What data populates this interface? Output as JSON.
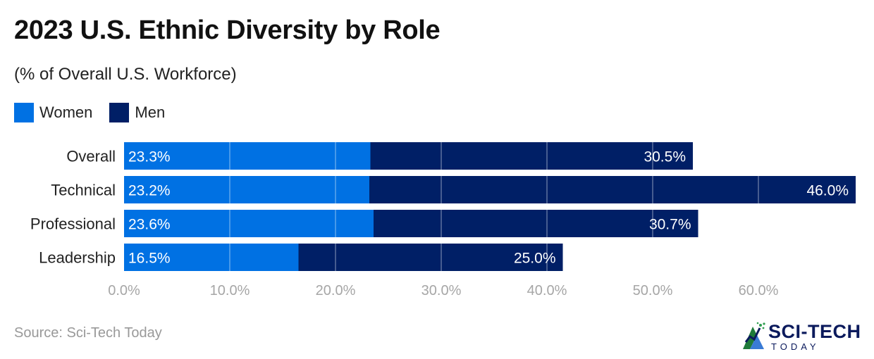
{
  "header": {
    "title": "2023 U.S. Ethnic Diversity by Role",
    "subtitle": "(% of Overall U.S. Workforce)"
  },
  "legend": {
    "women": "Women",
    "men": "Men"
  },
  "colors": {
    "women": "#0071e3",
    "men": "#001f66",
    "grid": "#ffffff",
    "tick": "#a6a6a6"
  },
  "chart_data": {
    "type": "bar",
    "orientation": "horizontal",
    "stacked": true,
    "title": "2023 U.S. Ethnic Diversity by Role",
    "subtitle": "(% of Overall U.S. Workforce)",
    "categories": [
      "Overall",
      "Technical",
      "Professional",
      "Leadership"
    ],
    "series": [
      {
        "name": "Women",
        "values": [
          23.3,
          23.2,
          23.6,
          16.5
        ],
        "labels": [
          "23.3%",
          "23.2%",
          "23.6%",
          "16.5%"
        ]
      },
      {
        "name": "Men",
        "values": [
          30.5,
          46.0,
          30.7,
          25.0
        ],
        "labels": [
          "30.5%",
          "46.0%",
          "30.7%",
          "25.0%"
        ]
      }
    ],
    "xlim": [
      0,
      70
    ],
    "xticks": [
      0,
      10,
      20,
      30,
      40,
      50,
      60
    ],
    "xtick_labels": [
      "0.0%",
      "10.0%",
      "20.0%",
      "30.0%",
      "40.0%",
      "50.0%",
      "60.0%"
    ],
    "legend_position": "top-left",
    "grid": true
  },
  "footer": {
    "source": "Source: Sci-Tech Today",
    "logo_main": "SCI-TECH",
    "logo_sub": "TODAY"
  }
}
